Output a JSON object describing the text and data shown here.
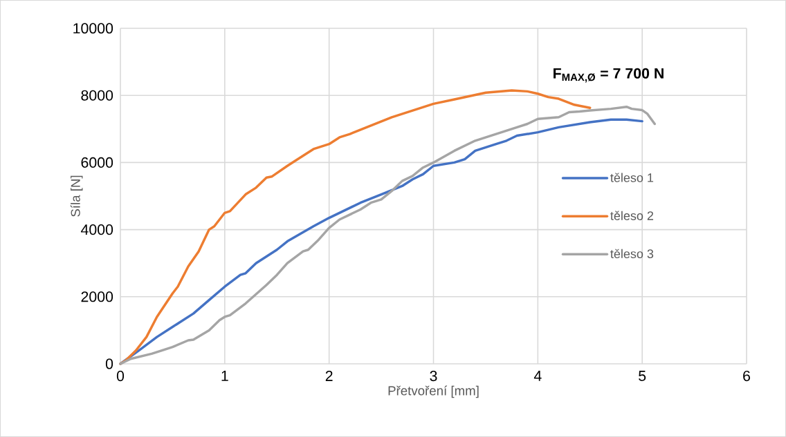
{
  "chart_data": {
    "type": "line",
    "xlabel": "Přetvoření [mm]",
    "ylabel": "Síla [N]",
    "annotations": [
      "**F$_{MAX,Ø}$ = 7 700 N**"
    ],
    "xlim": [
      0,
      6
    ],
    "ylim": [
      0,
      10000
    ],
    "xticks": [
      0,
      1,
      2,
      3,
      4,
      5,
      6
    ],
    "yticks": [
      0,
      2000,
      4000,
      6000,
      8000,
      10000
    ],
    "grid": true,
    "legend": "right",
    "marker": "none",
    "line_style": "solid",
    "series": [
      {
        "name": "těleso 1",
        "color": "#4472c4",
        "x": [
          0,
          0.2,
          0.35,
          0.5,
          0.7,
          0.85,
          1.0,
          1.15,
          1.2,
          1.3,
          1.5,
          1.6,
          1.85,
          2.0,
          2.3,
          2.5,
          2.7,
          2.8,
          2.9,
          3.0,
          3.2,
          3.3,
          3.4,
          3.6,
          3.7,
          3.8,
          4.0,
          4.2,
          4.5,
          4.7,
          4.85,
          5.0
        ],
        "values": [
          0,
          450,
          800,
          1100,
          1500,
          1900,
          2300,
          2650,
          2700,
          3000,
          3400,
          3650,
          4100,
          4350,
          4800,
          5050,
          5300,
          5500,
          5650,
          5900,
          6000,
          6100,
          6350,
          6550,
          6650,
          6800,
          6900,
          7050,
          7200,
          7280,
          7280,
          7230
        ]
      },
      {
        "name": "těleso 2",
        "color": "#ed7d31",
        "x": [
          0,
          0.05,
          0.15,
          0.25,
          0.35,
          0.5,
          0.55,
          0.65,
          0.75,
          0.85,
          0.9,
          1.0,
          1.05,
          1.2,
          1.3,
          1.4,
          1.45,
          1.6,
          1.7,
          1.85,
          2.0,
          2.1,
          2.2,
          2.4,
          2.6,
          2.8,
          3.0,
          3.2,
          3.5,
          3.75,
          3.9,
          4.0,
          4.1,
          4.2,
          4.35,
          4.5
        ],
        "values": [
          0,
          100,
          400,
          800,
          1400,
          2100,
          2300,
          2900,
          3350,
          4000,
          4100,
          4500,
          4550,
          5050,
          5250,
          5550,
          5580,
          5900,
          6100,
          6400,
          6550,
          6750,
          6850,
          7100,
          7350,
          7550,
          7750,
          7880,
          8080,
          8150,
          8120,
          8050,
          7950,
          7900,
          7720,
          7630
        ]
      },
      {
        "name": "těleso 3",
        "color": "#a5a5a5",
        "x": [
          0,
          0.1,
          0.3,
          0.5,
          0.65,
          0.7,
          0.85,
          0.95,
          1.0,
          1.05,
          1.2,
          1.4,
          1.5,
          1.6,
          1.75,
          1.8,
          1.9,
          2.0,
          2.1,
          2.3,
          2.4,
          2.5,
          2.6,
          2.7,
          2.8,
          2.9,
          3.0,
          3.2,
          3.4,
          3.6,
          3.8,
          3.9,
          4.0,
          4.2,
          4.3,
          4.4,
          4.5,
          4.7,
          4.85,
          4.9,
          5.0,
          5.05,
          5.12
        ],
        "values": [
          0,
          150,
          300,
          500,
          700,
          720,
          1000,
          1300,
          1400,
          1450,
          1800,
          2350,
          2650,
          3000,
          3350,
          3400,
          3700,
          4050,
          4300,
          4600,
          4800,
          4900,
          5150,
          5450,
          5600,
          5850,
          6000,
          6350,
          6650,
          6850,
          7050,
          7150,
          7300,
          7350,
          7500,
          7520,
          7550,
          7600,
          7660,
          7600,
          7560,
          7450,
          7150
        ]
      }
    ]
  }
}
